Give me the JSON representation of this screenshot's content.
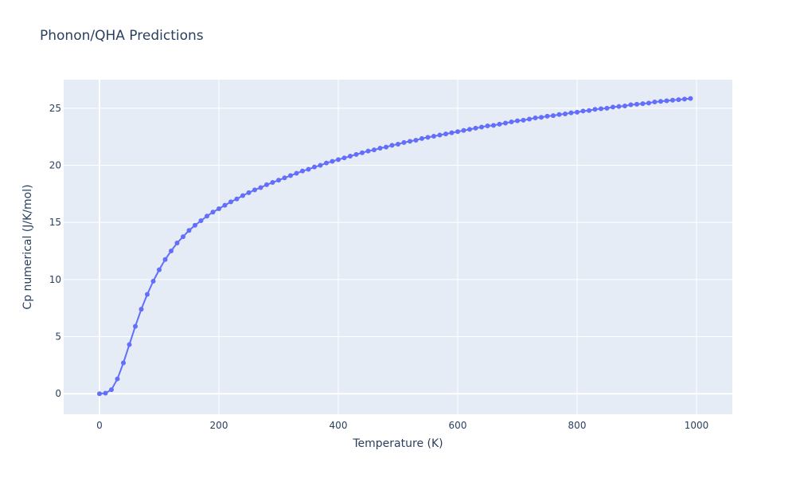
{
  "chart_data": {
    "type": "line",
    "title": "Phonon/QHA Predictions",
    "xlabel": "Temperature (K)",
    "ylabel": "Cp numerical (J/K/mol)",
    "xlim": [
      -60,
      1060
    ],
    "ylim": [
      -1.8,
      27.5
    ],
    "xticks": [
      0,
      200,
      400,
      600,
      800,
      1000
    ],
    "yticks": [
      0,
      5,
      10,
      15,
      20,
      25
    ],
    "grid": true,
    "legend": "none",
    "colors": {
      "line": "#636efa",
      "plot_bg": "#e5ecf6",
      "grid": "#ffffff",
      "text": "#2a3f5f"
    },
    "series": [
      {
        "x": [
          0,
          10,
          20,
          30,
          40,
          50,
          60,
          70,
          80,
          90,
          100,
          110,
          120,
          130,
          140,
          150,
          160,
          170,
          180,
          190,
          200,
          210,
          220,
          230,
          240,
          250,
          260,
          270,
          280,
          290,
          300,
          310,
          320,
          330,
          340,
          350,
          360,
          370,
          380,
          390,
          400,
          410,
          420,
          430,
          440,
          450,
          460,
          470,
          480,
          490,
          500,
          510,
          520,
          530,
          540,
          550,
          560,
          570,
          580,
          590,
          600,
          610,
          620,
          630,
          640,
          650,
          660,
          670,
          680,
          690,
          700,
          710,
          720,
          730,
          740,
          750,
          760,
          770,
          780,
          790,
          800,
          810,
          820,
          830,
          840,
          850,
          860,
          870,
          880,
          890,
          900,
          910,
          920,
          930,
          940,
          950,
          960,
          970,
          980,
          990
        ],
        "y": [
          0,
          0.05,
          0.35,
          1.3,
          2.7,
          4.3,
          5.9,
          7.4,
          8.7,
          9.85,
          10.85,
          11.75,
          12.5,
          13.2,
          13.75,
          14.3,
          14.75,
          15.15,
          15.55,
          15.9,
          16.2,
          16.5,
          16.8,
          17.05,
          17.35,
          17.6,
          17.85,
          18.05,
          18.3,
          18.5,
          18.7,
          18.9,
          19.1,
          19.3,
          19.5,
          19.65,
          19.85,
          20.0,
          20.2,
          20.35,
          20.5,
          20.65,
          20.8,
          20.95,
          21.1,
          21.25,
          21.35,
          21.5,
          21.6,
          21.75,
          21.85,
          22.0,
          22.1,
          22.2,
          22.35,
          22.45,
          22.55,
          22.65,
          22.75,
          22.85,
          22.95,
          23.05,
          23.15,
          23.25,
          23.35,
          23.45,
          23.5,
          23.6,
          23.7,
          23.8,
          23.9,
          23.95,
          24.05,
          24.15,
          24.2,
          24.3,
          24.35,
          24.45,
          24.5,
          24.6,
          24.65,
          24.75,
          24.8,
          24.9,
          24.95,
          25.0,
          25.1,
          25.15,
          25.2,
          25.3,
          25.35,
          25.4,
          25.45,
          25.55,
          25.6,
          25.65,
          25.7,
          25.75,
          25.8,
          25.85
        ]
      }
    ]
  }
}
